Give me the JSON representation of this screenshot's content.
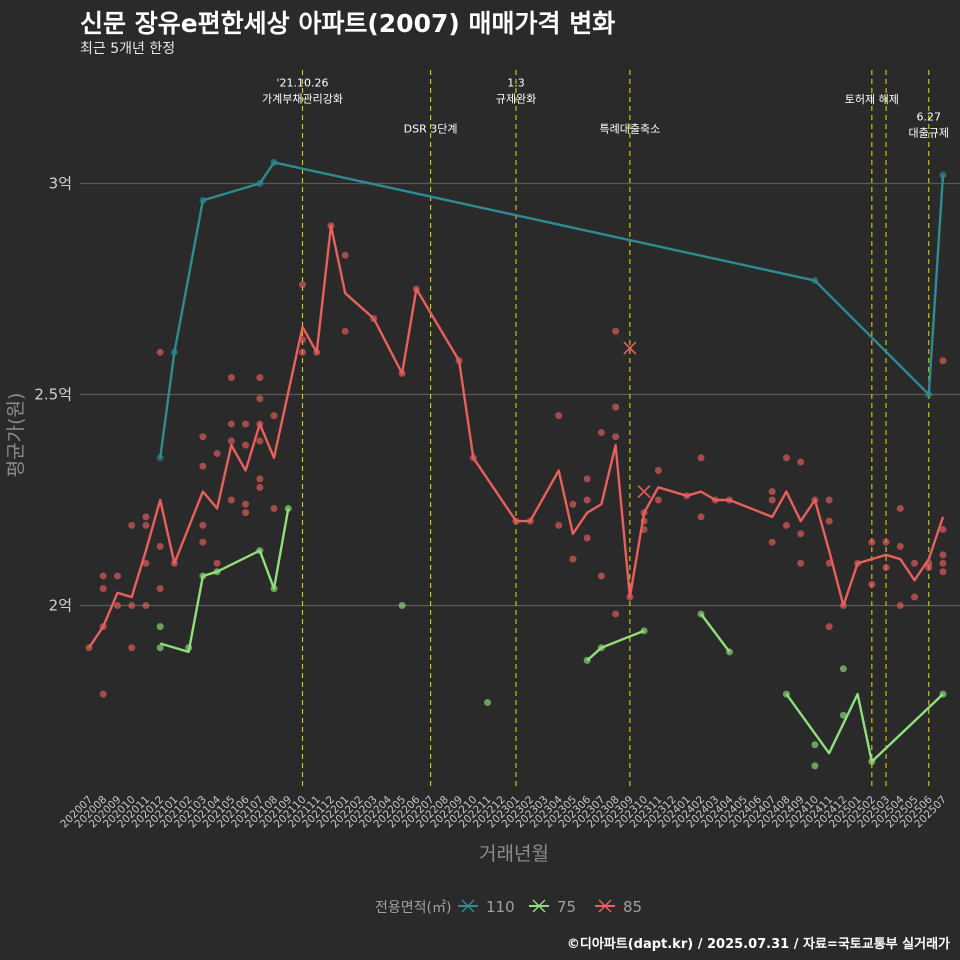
{
  "header": {
    "title": "신문 장유e편한세상 아파트(2007) 매매가격 변화",
    "subtitle": "최근 5개년 한정"
  },
  "caption": "©디아파트(dapt.kr) / 2025.07.31 / 자료=국토교통부 실거래가",
  "colors": {
    "background": "#2a2a2b",
    "s110": "#2e8b8f",
    "s75": "#8fe07a",
    "s85": "#e8605c",
    "vline": "#d4d400",
    "grid": "#5a5a5a"
  },
  "chart_data": {
    "type": "line",
    "xlabel": "거래년월",
    "ylabel": "평균가(원)",
    "ylim": [
      1.55,
      3.2
    ],
    "yunit": "억",
    "yticks": [
      {
        "value": 2.0,
        "label": "2억"
      },
      {
        "value": 2.5,
        "label": "2.5억"
      },
      {
        "value": 3.0,
        "label": "3억"
      }
    ],
    "x_categories": [
      "202007",
      "202008",
      "202009",
      "202010",
      "202011",
      "202012",
      "202101",
      "202102",
      "202103",
      "202104",
      "202105",
      "202106",
      "202107",
      "202108",
      "202109",
      "202110",
      "202111",
      "202112",
      "202201",
      "202202",
      "202203",
      "202204",
      "202205",
      "202206",
      "202207",
      "202208",
      "202209",
      "202210",
      "202211",
      "202212",
      "202301",
      "202302",
      "202303",
      "202304",
      "202305",
      "202306",
      "202307",
      "202308",
      "202309",
      "202310",
      "202311",
      "202312",
      "202401",
      "202402",
      "202403",
      "202404",
      "202405",
      "202406",
      "202407",
      "202408",
      "202409",
      "202410",
      "202411",
      "202412",
      "202501",
      "202502",
      "202503",
      "202504",
      "202505",
      "202506",
      "202507"
    ],
    "legend": {
      "title": "전용면적(㎡)",
      "entries": [
        "110",
        "75",
        "85"
      ]
    },
    "series": [
      {
        "name": "110",
        "color": "#2e8b8f",
        "line": [
          [
            "202012",
            2.35
          ],
          [
            "202101",
            2.6
          ],
          [
            "202103",
            2.96
          ],
          [
            "202107",
            3.0
          ],
          [
            "202108",
            3.05
          ],
          [
            "202410",
            2.77
          ],
          [
            "202506",
            2.5
          ],
          [
            "202507",
            3.02
          ]
        ],
        "points": [
          [
            "202012",
            2.35
          ],
          [
            "202101",
            2.6
          ],
          [
            "202103",
            2.96
          ],
          [
            "202107",
            3.0
          ],
          [
            "202108",
            3.05
          ],
          [
            "202410",
            2.77
          ],
          [
            "202506",
            2.5
          ],
          [
            "202507",
            3.02
          ]
        ]
      },
      {
        "name": "75",
        "color": "#8fe07a",
        "line_segments": [
          [
            [
              "202012",
              1.91
            ],
            [
              "202102",
              1.89
            ],
            [
              "202103",
              2.07
            ],
            [
              "202104",
              2.08
            ],
            [
              "202107",
              2.13
            ],
            [
              "202108",
              2.04
            ],
            [
              "202109",
              2.23
            ]
          ],
          [
            [
              "202306",
              1.87
            ],
            [
              "202307",
              1.9
            ],
            [
              "202310",
              1.94
            ]
          ],
          [
            [
              "202402",
              1.98
            ],
            [
              "202404",
              1.89
            ]
          ],
          [
            [
              "202408",
              1.79
            ],
            [
              "202411",
              1.65
            ],
            [
              "202413",
              1.79
            ],
            [
              "202502",
              1.63
            ],
            [
              "202507",
              1.79
            ]
          ]
        ],
        "points": [
          [
            "202012",
            1.95
          ],
          [
            "202012",
            1.9
          ],
          [
            "202102",
            1.9
          ],
          [
            "202103",
            2.07
          ],
          [
            "202104",
            2.08
          ],
          [
            "202107",
            2.13
          ],
          [
            "202108",
            2.04
          ],
          [
            "202109",
            2.23
          ],
          [
            "202205",
            2.0
          ],
          [
            "202211",
            1.77
          ],
          [
            "202306",
            1.87
          ],
          [
            "202307",
            1.9
          ],
          [
            "202310",
            1.94
          ],
          [
            "202402",
            1.98
          ],
          [
            "202404",
            1.89
          ],
          [
            "202408",
            1.79
          ],
          [
            "202410",
            1.67
          ],
          [
            "202410",
            1.62
          ],
          [
            "202412",
            1.85
          ],
          [
            "202412",
            1.74
          ],
          [
            "202502",
            1.63
          ],
          [
            "202507",
            1.79
          ]
        ]
      },
      {
        "name": "85",
        "color": "#e8605c",
        "line": [
          [
            "202007",
            1.9
          ],
          [
            "202008",
            1.95
          ],
          [
            "202009",
            2.03
          ],
          [
            "202010",
            2.02
          ],
          [
            "202011",
            2.13
          ],
          [
            "202012",
            2.25
          ],
          [
            "202101",
            2.1
          ],
          [
            "202103",
            2.27
          ],
          [
            "202104",
            2.23
          ],
          [
            "202105",
            2.38
          ],
          [
            "202106",
            2.32
          ],
          [
            "202107",
            2.43
          ],
          [
            "202108",
            2.35
          ],
          [
            "202110",
            2.66
          ],
          [
            "202111",
            2.6
          ],
          [
            "202112",
            2.9
          ],
          [
            "202201",
            2.74
          ],
          [
            "202203",
            2.68
          ],
          [
            "202205",
            2.55
          ],
          [
            "202206",
            2.75
          ],
          [
            "202209",
            2.58
          ],
          [
            "202210",
            2.35
          ],
          [
            "202301",
            2.2
          ],
          [
            "202302",
            2.2
          ],
          [
            "202304",
            2.32
          ],
          [
            "202305",
            2.17
          ],
          [
            "202306",
            2.22
          ],
          [
            "202307",
            2.24
          ],
          [
            "202308",
            2.38
          ],
          [
            "202309",
            2.02
          ],
          [
            "202310",
            2.22
          ],
          [
            "202311",
            2.28
          ],
          [
            "202401",
            2.26
          ],
          [
            "202402",
            2.27
          ],
          [
            "202403",
            2.25
          ],
          [
            "202404",
            2.25
          ],
          [
            "202407",
            2.21
          ],
          [
            "202408",
            2.27
          ],
          [
            "202409",
            2.2
          ],
          [
            "202410",
            2.25
          ],
          [
            "202411",
            2.13
          ],
          [
            "202412",
            2.0
          ],
          [
            "202501",
            2.1
          ],
          [
            "202502",
            2.11
          ],
          [
            "202503",
            2.12
          ],
          [
            "202504",
            2.11
          ],
          [
            "202505",
            2.06
          ],
          [
            "202506",
            2.11
          ],
          [
            "202507",
            2.21
          ]
        ],
        "points": [
          [
            "202007",
            1.9
          ],
          [
            "202008",
            2.07
          ],
          [
            "202008",
            2.04
          ],
          [
            "202008",
            1.95
          ],
          [
            "202008",
            1.79
          ],
          [
            "202009",
            2.07
          ],
          [
            "202009",
            2.0
          ],
          [
            "202010",
            2.19
          ],
          [
            "202010",
            2.0
          ],
          [
            "202010",
            1.9
          ],
          [
            "202011",
            2.21
          ],
          [
            "202011",
            2.19
          ],
          [
            "202011",
            2.1
          ],
          [
            "202011",
            2.0
          ],
          [
            "202012",
            2.6
          ],
          [
            "202012",
            2.14
          ],
          [
            "202012",
            2.04
          ],
          [
            "202101",
            2.1
          ],
          [
            "202103",
            2.4
          ],
          [
            "202103",
            2.33
          ],
          [
            "202103",
            2.19
          ],
          [
            "202103",
            2.15
          ],
          [
            "202104",
            2.36
          ],
          [
            "202104",
            2.1
          ],
          [
            "202105",
            2.54
          ],
          [
            "202105",
            2.43
          ],
          [
            "202105",
            2.39
          ],
          [
            "202105",
            2.25
          ],
          [
            "202106",
            2.43
          ],
          [
            "202106",
            2.38
          ],
          [
            "202106",
            2.24
          ],
          [
            "202106",
            2.22
          ],
          [
            "202107",
            2.54
          ],
          [
            "202107",
            2.49
          ],
          [
            "202107",
            2.43
          ],
          [
            "202107",
            2.39
          ],
          [
            "202107",
            2.3
          ],
          [
            "202107",
            2.28
          ],
          [
            "202108",
            2.45
          ],
          [
            "202108",
            2.23
          ],
          [
            "202110",
            2.76
          ],
          [
            "202110",
            2.63
          ],
          [
            "202110",
            2.6
          ],
          [
            "202111",
            2.6
          ],
          [
            "202112",
            2.9
          ],
          [
            "202201",
            2.83
          ],
          [
            "202201",
            2.65
          ],
          [
            "202203",
            2.68
          ],
          [
            "202205",
            2.55
          ],
          [
            "202206",
            2.75
          ],
          [
            "202209",
            2.58
          ],
          [
            "202210",
            2.35
          ],
          [
            "202301",
            2.2
          ],
          [
            "202302",
            2.2
          ],
          [
            "202304",
            2.45
          ],
          [
            "202304",
            2.19
          ],
          [
            "202305",
            2.24
          ],
          [
            "202305",
            2.11
          ],
          [
            "202306",
            2.3
          ],
          [
            "202306",
            2.25
          ],
          [
            "202306",
            2.16
          ],
          [
            "202307",
            2.41
          ],
          [
            "202307",
            2.07
          ],
          [
            "202308",
            2.47
          ],
          [
            "202308",
            2.4
          ],
          [
            "202308",
            2.65
          ],
          [
            "202308",
            1.98
          ],
          [
            "202309",
            2.02
          ],
          [
            "202310",
            2.22
          ],
          [
            "202310",
            2.2
          ],
          [
            "202310",
            2.18
          ],
          [
            "202311",
            2.32
          ],
          [
            "202311",
            2.25
          ],
          [
            "202401",
            2.26
          ],
          [
            "202402",
            2.35
          ],
          [
            "202402",
            2.21
          ],
          [
            "202403",
            2.25
          ],
          [
            "202404",
            2.25
          ],
          [
            "202407",
            2.27
          ],
          [
            "202407",
            2.25
          ],
          [
            "202407",
            2.15
          ],
          [
            "202408",
            2.35
          ],
          [
            "202408",
            2.19
          ],
          [
            "202409",
            2.34
          ],
          [
            "202409",
            2.17
          ],
          [
            "202409",
            2.1
          ],
          [
            "202410",
            2.25
          ],
          [
            "202411",
            2.25
          ],
          [
            "202411",
            2.2
          ],
          [
            "202411",
            2.1
          ],
          [
            "202411",
            1.95
          ],
          [
            "202412",
            2.0
          ],
          [
            "202501",
            2.1
          ],
          [
            "202502",
            2.15
          ],
          [
            "202502",
            2.05
          ],
          [
            "202503",
            2.15
          ],
          [
            "202503",
            2.09
          ],
          [
            "202504",
            2.23
          ],
          [
            "202504",
            2.14
          ],
          [
            "202504",
            2.0
          ],
          [
            "202505",
            2.1
          ],
          [
            "202505",
            2.02
          ],
          [
            "202506",
            2.1
          ],
          [
            "202506",
            2.09
          ],
          [
            "202507",
            2.58
          ],
          [
            "202507",
            2.18
          ],
          [
            "202507",
            2.12
          ],
          [
            "202507",
            2.1
          ],
          [
            "202507",
            2.08
          ]
        ],
        "markers": [
          [
            "202309",
            2.61
          ],
          [
            "202310",
            2.27
          ]
        ]
      }
    ],
    "vlines": [
      {
        "x": "202110",
        "label": [
          "'21.10.26",
          "가계부채관리강화"
        ],
        "label_y": 3.22
      },
      {
        "x": "202207",
        "label": [
          "DSR 3단계"
        ],
        "label_y": 3.13
      },
      {
        "x": "202301",
        "label": [
          "1.3",
          "규제완화"
        ],
        "label_y": 3.22
      },
      {
        "x": "202309",
        "label": [
          "특례대출축소"
        ],
        "label_y": 3.13
      },
      {
        "x": "202502",
        "label": [
          "토허제 해제"
        ],
        "label_y": 3.2
      },
      {
        "x": "202503",
        "label": [],
        "label_y": 3.2
      },
      {
        "x": "202506",
        "label": [
          "6.27",
          "대출규제"
        ],
        "label_y": 3.14
      }
    ]
  }
}
